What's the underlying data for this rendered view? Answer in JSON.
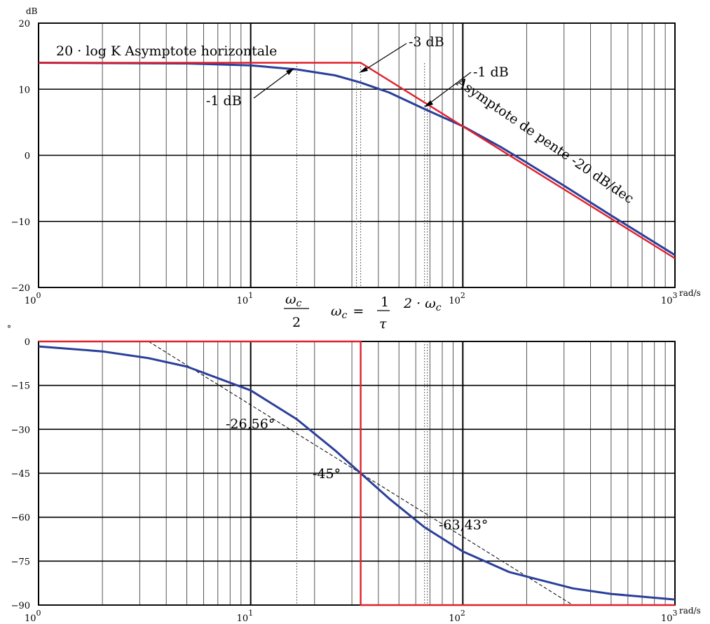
{
  "chart_data": [
    {
      "type": "line",
      "scale_x": "log",
      "xlim": [
        1,
        1000
      ],
      "ylim": [
        -20,
        20
      ],
      "grid": true,
      "x_ticks": [
        1,
        10,
        100,
        1000
      ],
      "x_tick_labels": [
        {
          "base": "10",
          "exp": "0"
        },
        {
          "base": "10",
          "exp": "1"
        },
        {
          "base": "10",
          "exp": "2"
        },
        {
          "base": "10",
          "exp": "3"
        }
      ],
      "y_ticks": [
        -20,
        -10,
        0,
        10,
        20
      ],
      "y_tick_labels": [
        "−20",
        "−10",
        "0",
        "10",
        "20"
      ],
      "ylabel": "dB",
      "xlabel": "rad/s",
      "gain_db": 14,
      "corner_frequency": 33,
      "series": [
        {
          "color": "#2b3f9a",
          "x": [
            1,
            5,
            10,
            16.5,
            25,
            33,
            45,
            66,
            100,
            150,
            200,
            300,
            500,
            1000
          ],
          "y": [
            14,
            13.9,
            13.6,
            13,
            12.1,
            11,
            9.5,
            7,
            4.4,
            1.3,
            -1.1,
            -4.6,
            -9.1,
            -15.1
          ]
        },
        {
          "color": "#e0202c",
          "x": [
            1,
            33,
            1000
          ],
          "y": [
            14,
            14,
            -15.6
          ]
        }
      ],
      "guides": [
        16.5,
        33,
        66
      ],
      "annotations": {
        "horizontal": "20 · log K Asymptote horizontale",
        "minus3": "-3 dB",
        "minus1_right": "-1 dB",
        "minus1_left": "-1 dB",
        "slope": "Asymptote de pente -20 dB/dec",
        "wc": "ω",
        "wc_sub": "c",
        "wc_den": "2",
        "eq_lhs": "ω",
        "eq_lhs_sub": "c",
        "eq_eq": "=",
        "eq_num": "1",
        "eq_den": "τ",
        "two_wc": "2 · ω",
        "two_wc_sub": "c"
      }
    },
    {
      "type": "line",
      "scale_x": "log",
      "xlim": [
        1,
        1000
      ],
      "ylim": [
        -90,
        0
      ],
      "grid": true,
      "x_ticks": [
        1,
        10,
        100,
        1000
      ],
      "x_tick_labels": [
        {
          "base": "10",
          "exp": "0"
        },
        {
          "base": "10",
          "exp": "1"
        },
        {
          "base": "10",
          "exp": "2"
        },
        {
          "base": "10",
          "exp": "3"
        }
      ],
      "y_ticks": [
        0,
        -15,
        -30,
        -45,
        -60,
        -75,
        -90
      ],
      "y_tick_labels": [
        "0",
        "−15",
        "−30",
        "−45",
        "−60",
        "−75",
        "−90"
      ],
      "ylabel": "°",
      "xlabel": "rad/s",
      "series": [
        {
          "color": "#2b3f9a",
          "x": [
            1,
            2,
            3.3,
            5,
            10,
            16.5,
            25,
            33,
            45,
            66,
            100,
            165,
            330,
            500,
            1000
          ],
          "y": [
            -1.7,
            -3.4,
            -5.7,
            -8.6,
            -16.7,
            -26.56,
            -37.2,
            -45,
            -53.7,
            -63.43,
            -71.7,
            -78.7,
            -84.3,
            -86.2,
            -88.1
          ]
        },
        {
          "color": "#e0202c",
          "x": [
            1,
            33,
            33,
            1000
          ],
          "y": [
            0,
            0,
            -90,
            -90
          ]
        }
      ],
      "tangent": {
        "x": [
          3.3,
          330
        ],
        "y": [
          0,
          -90
        ]
      },
      "guides": [
        16.5,
        66
      ],
      "annotations": {
        "p26": "-26,56°",
        "p45": "-45°",
        "p63": "-63,43°"
      }
    }
  ]
}
